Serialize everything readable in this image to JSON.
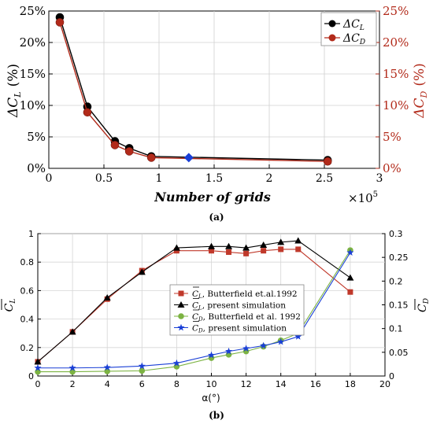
{
  "chart_data": [
    {
      "type": "line",
      "panel_label": "(a)",
      "xlabel": "Number of grids",
      "x_multiplier": "×10",
      "x_multiplier_exp": "5",
      "ylabel_left": {
        "main": "ΔC",
        "sub": "L",
        "unit": "(%)"
      },
      "ylabel_right": {
        "main": "ΔC",
        "sub": "D",
        "unit": "(%)"
      },
      "xlim": [
        0,
        3
      ],
      "ylim": [
        0,
        25
      ],
      "xticks": [
        "0",
        "0.5",
        "1",
        "1.5",
        "2",
        "2.5",
        "3"
      ],
      "yticks_left": [
        "0%",
        "5%",
        "10%",
        "15%",
        "20%",
        "25%"
      ],
      "yticks_right": [
        "0%",
        "5%",
        "10%",
        "15%",
        "20%",
        "25%"
      ],
      "grid": true,
      "legend": "top-right",
      "series": [
        {
          "name": "ΔC_L",
          "label_main": "ΔC",
          "label_sub": "L",
          "color": "#000000",
          "marker": "circle",
          "x": [
            0.1,
            0.35,
            0.6,
            0.73,
            0.93,
            2.53
          ],
          "y": [
            24.0,
            9.8,
            4.3,
            3.2,
            1.9,
            1.3
          ]
        },
        {
          "name": "ΔC_D",
          "label_main": "ΔC",
          "label_sub": "D",
          "color": "#b22a1a",
          "marker": "circle",
          "x": [
            0.1,
            0.35,
            0.6,
            0.73,
            0.93,
            2.53
          ],
          "y": [
            23.2,
            8.9,
            3.7,
            2.7,
            1.7,
            1.1
          ]
        }
      ],
      "reference_point": {
        "x": 1.27,
        "y": 1.7,
        "color": "#1a3fd6",
        "marker": "diamond"
      }
    },
    {
      "type": "line",
      "panel_label": "(b)",
      "xlabel": "α(°)",
      "ylabel_left": {
        "main": "C",
        "sub": "L"
      },
      "ylabel_right": {
        "main": "C",
        "sub": "D"
      },
      "xlim": [
        0,
        20
      ],
      "ylim_left": [
        0,
        1.0
      ],
      "ylim_right": [
        0,
        0.3
      ],
      "xticks": [
        "0",
        "2",
        "4",
        "6",
        "8",
        "10",
        "12",
        "14",
        "16",
        "18",
        "20"
      ],
      "yticks_left": [
        "0",
        "0.2",
        "0.4",
        "0.6",
        "0.8",
        "1"
      ],
      "yticks_right": [
        "0",
        "0.05",
        "0.1",
        "0.15",
        "0.2",
        "0.25",
        "0.3"
      ],
      "grid": true,
      "legend": "center",
      "series": [
        {
          "name": ", Butterfield et.al.1992",
          "label_main": "C",
          "label_sub": "L",
          "axis": "left",
          "color": "#c0392b",
          "marker": "square",
          "x": [
            0,
            2,
            4,
            6,
            8,
            10,
            11,
            12,
            13,
            14,
            15,
            18
          ],
          "y": [
            0.1,
            0.31,
            0.54,
            0.74,
            0.88,
            0.88,
            0.87,
            0.86,
            0.88,
            0.89,
            0.89,
            0.59
          ]
        },
        {
          "name": ", present simulation",
          "label_main": "C",
          "label_sub": "L",
          "axis": "left",
          "color": "#000000",
          "marker": "triangle",
          "x": [
            0,
            2,
            4,
            6,
            8,
            10,
            11,
            12,
            13,
            14,
            15,
            18
          ],
          "y": [
            0.1,
            0.31,
            0.55,
            0.73,
            0.9,
            0.91,
            0.91,
            0.9,
            0.92,
            0.94,
            0.95,
            0.69
          ]
        },
        {
          "name": ", Butterfield et al. 1992",
          "label_main": "C",
          "label_sub": "D",
          "axis": "right",
          "color": "#7cb342",
          "marker": "circle",
          "x": [
            0,
            2,
            4,
            6,
            8,
            10,
            11,
            12,
            13,
            14,
            15,
            18
          ],
          "y": [
            0.009,
            0.009,
            0.01,
            0.011,
            0.02,
            0.038,
            0.045,
            0.052,
            0.062,
            0.075,
            0.09,
            0.265
          ]
        },
        {
          "name": ", present simulation",
          "label_main": "C",
          "label_sub": "D",
          "axis": "right",
          "color": "#1a3fd6",
          "marker": "star",
          "x": [
            0,
            2,
            4,
            6,
            8,
            10,
            11,
            12,
            13,
            14,
            15,
            18
          ],
          "y": [
            0.017,
            0.017,
            0.018,
            0.021,
            0.027,
            0.044,
            0.052,
            0.058,
            0.064,
            0.072,
            0.083,
            0.26
          ]
        }
      ]
    }
  ]
}
